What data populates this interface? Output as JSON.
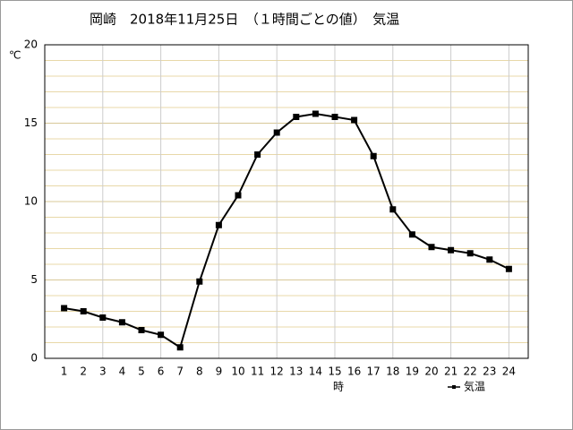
{
  "chart_data": {
    "type": "line",
    "title": "岡崎　2018年11月25日　（１時間ごとの値）　気温",
    "y_label": "℃",
    "x_label": "時",
    "x": [
      1,
      2,
      3,
      4,
      5,
      6,
      7,
      8,
      9,
      10,
      11,
      12,
      13,
      14,
      15,
      16,
      17,
      18,
      19,
      20,
      21,
      22,
      23,
      24
    ],
    "xlim": [
      0,
      25
    ],
    "xticks": [
      1,
      2,
      3,
      4,
      5,
      6,
      7,
      8,
      9,
      10,
      11,
      12,
      13,
      14,
      15,
      16,
      17,
      18,
      19,
      20,
      21,
      22,
      23,
      24
    ],
    "ylim": [
      0,
      20
    ],
    "yticks": [
      0,
      5,
      10,
      15,
      20
    ],
    "grid": true,
    "series": [
      {
        "name": "気温",
        "color": "#000000",
        "values": [
          3.2,
          3.0,
          2.6,
          2.3,
          1.8,
          1.5,
          0.7,
          4.9,
          8.5,
          10.4,
          13.0,
          14.4,
          15.4,
          15.6,
          15.4,
          15.2,
          12.9,
          9.5,
          7.9,
          7.1,
          6.9,
          6.7,
          6.3,
          5.7
        ]
      }
    ]
  }
}
